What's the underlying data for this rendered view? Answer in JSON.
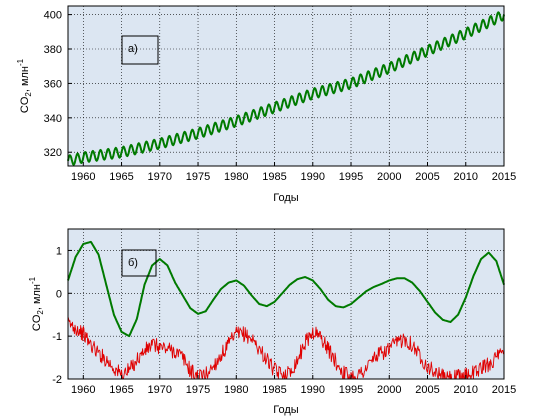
{
  "chart_data": [
    {
      "type": "line",
      "panel_label": "а)",
      "xlabel": "Годы",
      "ylabel": "CO",
      "ylabel_subscript": "2",
      "ylabel_unit": ", млн",
      "ylabel_superscript": "-1",
      "xlim": [
        1958,
        2015
      ],
      "ylim": [
        312,
        405
      ],
      "xticks": [
        1960,
        1965,
        1970,
        1975,
        1980,
        1985,
        1990,
        1995,
        2000,
        2005,
        2010,
        2015
      ],
      "yticks": [
        320,
        340,
        360,
        380,
        400
      ],
      "grid": true,
      "background": "#dce6f2",
      "series": [
        {
          "color": "#007a00",
          "seasonal_amplitude": 3,
          "x": [
            1958,
            1960,
            1965,
            1970,
            1975,
            1980,
            1985,
            1990,
            1995,
            2000,
            2005,
            2010,
            2015
          ],
          "values": [
            315,
            317,
            320,
            325,
            331,
            338,
            346,
            354,
            360,
            369,
            379,
            389,
            400
          ]
        }
      ]
    },
    {
      "type": "line",
      "panel_label": "б)",
      "xlabel": "Годы",
      "ylabel": "CO",
      "ylabel_subscript": "2",
      "ylabel_unit": ", млн",
      "ylabel_superscript": "-1",
      "xlim": [
        1958,
        2015
      ],
      "ylim": [
        -2,
        1.5
      ],
      "xticks": [
        1960,
        1965,
        1970,
        1975,
        1980,
        1985,
        1990,
        1995,
        2000,
        2005,
        2010,
        2015
      ],
      "yticks": [
        -2,
        -1,
        0,
        1
      ],
      "grid": true,
      "background": "#dce6f2",
      "series": [
        {
          "color": "#007a00",
          "x": [
            1958,
            1959,
            1960,
            1961,
            1962,
            1963,
            1964,
            1965,
            1966,
            1967,
            1968,
            1969,
            1970,
            1971,
            1972,
            1973,
            1974,
            1975,
            1976,
            1977,
            1978,
            1979,
            1980,
            1981,
            1982,
            1983,
            1984,
            1985,
            1986,
            1987,
            1988,
            1989,
            1990,
            1991,
            1992,
            1993,
            1994,
            1995,
            1996,
            1997,
            1998,
            1999,
            2000,
            2001,
            2002,
            2003,
            2004,
            2005,
            2006,
            2007,
            2008,
            2009,
            2010,
            2011,
            2012,
            2013,
            2014,
            2015
          ],
          "values": [
            0.3,
            0.85,
            1.15,
            1.2,
            0.9,
            0.2,
            -0.5,
            -0.9,
            -1.0,
            -0.6,
            0.2,
            0.65,
            0.8,
            0.65,
            0.25,
            -0.05,
            -0.35,
            -0.48,
            -0.42,
            -0.15,
            0.1,
            0.25,
            0.3,
            0.18,
            -0.05,
            -0.25,
            -0.3,
            -0.2,
            0.0,
            0.2,
            0.33,
            0.38,
            0.3,
            0.1,
            -0.15,
            -0.3,
            -0.33,
            -0.25,
            -0.1,
            0.05,
            0.15,
            0.22,
            0.3,
            0.35,
            0.35,
            0.25,
            0.05,
            -0.2,
            -0.45,
            -0.62,
            -0.67,
            -0.5,
            -0.1,
            0.4,
            0.8,
            0.95,
            0.75,
            0.2
          ]
        },
        {
          "color": "#e00000",
          "noise_amplitude": 0.18,
          "x": [
            1958,
            1959,
            1960,
            1961,
            1962,
            1963,
            1964,
            1965,
            1966,
            1967,
            1968,
            1969,
            1970,
            1971,
            1972,
            1973,
            1974,
            1975,
            1976,
            1977,
            1978,
            1979,
            1980,
            1981,
            1982,
            1983,
            1984,
            1985,
            1986,
            1987,
            1988,
            1989,
            1990,
            1991,
            1992,
            1993,
            1994,
            1995,
            1996,
            1997,
            1998,
            1999,
            2000,
            2001,
            2002,
            2003,
            2004,
            2005,
            2006,
            2007,
            2008,
            2009,
            2010,
            2011,
            2012,
            2013,
            2014,
            2015
          ],
          "values": [
            -0.7,
            -0.8,
            -0.95,
            -1.2,
            -1.4,
            -1.55,
            -1.75,
            -1.9,
            -1.8,
            -1.55,
            -1.35,
            -1.2,
            -1.25,
            -1.3,
            -1.35,
            -1.5,
            -1.8,
            -1.95,
            -1.9,
            -1.7,
            -1.45,
            -1.2,
            -0.95,
            -0.95,
            -1.05,
            -1.3,
            -1.55,
            -1.8,
            -1.9,
            -1.85,
            -1.55,
            -1.15,
            -0.9,
            -1.0,
            -1.3,
            -1.6,
            -1.85,
            -1.95,
            -1.9,
            -1.75,
            -1.5,
            -1.4,
            -1.3,
            -1.15,
            -1.05,
            -1.2,
            -1.45,
            -1.7,
            -1.85,
            -1.95,
            -2.0,
            -1.95,
            -1.9,
            -1.85,
            -1.75,
            -1.65,
            -1.5,
            -1.4
          ]
        }
      ]
    }
  ]
}
